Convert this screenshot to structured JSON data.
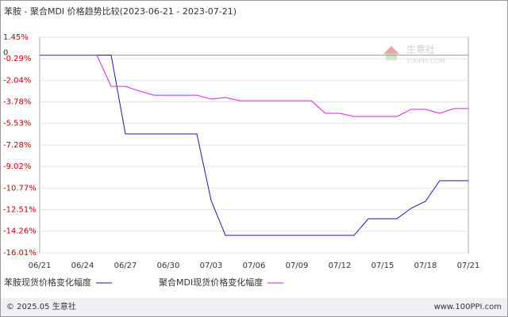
{
  "chart_data": {
    "type": "line",
    "title": "苯胺 - 聚合MDI 价格趋势比较(2023-06-21 - 2023-07-21)",
    "categories": [
      "06/21",
      null,
      null,
      "06/24",
      null,
      null,
      "06/27",
      null,
      null,
      "06/30",
      null,
      null,
      "07/03",
      null,
      null,
      "07/06",
      null,
      null,
      "07/09",
      null,
      null,
      "07/12",
      null,
      null,
      "07/15",
      null,
      null,
      "07/18",
      null,
      null,
      "07/21"
    ],
    "series": [
      {
        "name": "苯胺现货价格变化幅度",
        "color": "#1a1aa0",
        "values": [
          0,
          0,
          0,
          0,
          0,
          0,
          -6.38,
          -6.38,
          -6.38,
          -6.38,
          -6.38,
          -6.38,
          -11.77,
          -14.6,
          -14.6,
          -14.6,
          -14.6,
          -14.6,
          -14.6,
          -14.6,
          -14.6,
          -14.6,
          -14.6,
          -13.25,
          -13.25,
          -13.25,
          -12.4,
          -11.84,
          -10.17,
          -10.17,
          -10.17
        ]
      },
      {
        "name": "聚合MDI现货价格变化幅度",
        "color": "#d81ed8",
        "values": [
          0,
          0,
          0,
          0,
          0,
          -2.53,
          -2.53,
          -2.91,
          -3.24,
          -3.24,
          -3.24,
          -3.24,
          -3.56,
          -3.43,
          -3.69,
          -3.69,
          -3.69,
          -3.69,
          -3.69,
          -3.69,
          -4.71,
          -4.71,
          -4.97,
          -4.97,
          -4.97,
          -4.97,
          -4.39,
          -4.39,
          -4.71,
          -4.33,
          -4.33
        ]
      }
    ],
    "ylim": [
      -16.01,
      1.45
    ],
    "yticks": [
      {
        "value": 1.45,
        "label": "1.45%"
      },
      {
        "value": -0.29,
        "label": "-0.29%"
      },
      {
        "value": -2.04,
        "label": "-2.04%"
      },
      {
        "value": -3.78,
        "label": "-3.78%"
      },
      {
        "value": -5.53,
        "label": "-5.53%"
      },
      {
        "value": -7.28,
        "label": "-7.28%"
      },
      {
        "value": -9.02,
        "label": "-9.02%"
      },
      {
        "value": -10.77,
        "label": "-10.77%"
      },
      {
        "value": -12.51,
        "label": "-12.51%"
      },
      {
        "value": -14.26,
        "label": "-14.26%"
      },
      {
        "value": -16.01,
        "label": "-16.01%"
      }
    ],
    "zero_line": {
      "value": 0,
      "label": "0"
    },
    "grid": true,
    "watermark": {
      "name": "生意社",
      "site": "100PPI.COM"
    },
    "footer": {
      "left": "© 2025.05 生意社",
      "right": "www.100PPI.com"
    }
  }
}
